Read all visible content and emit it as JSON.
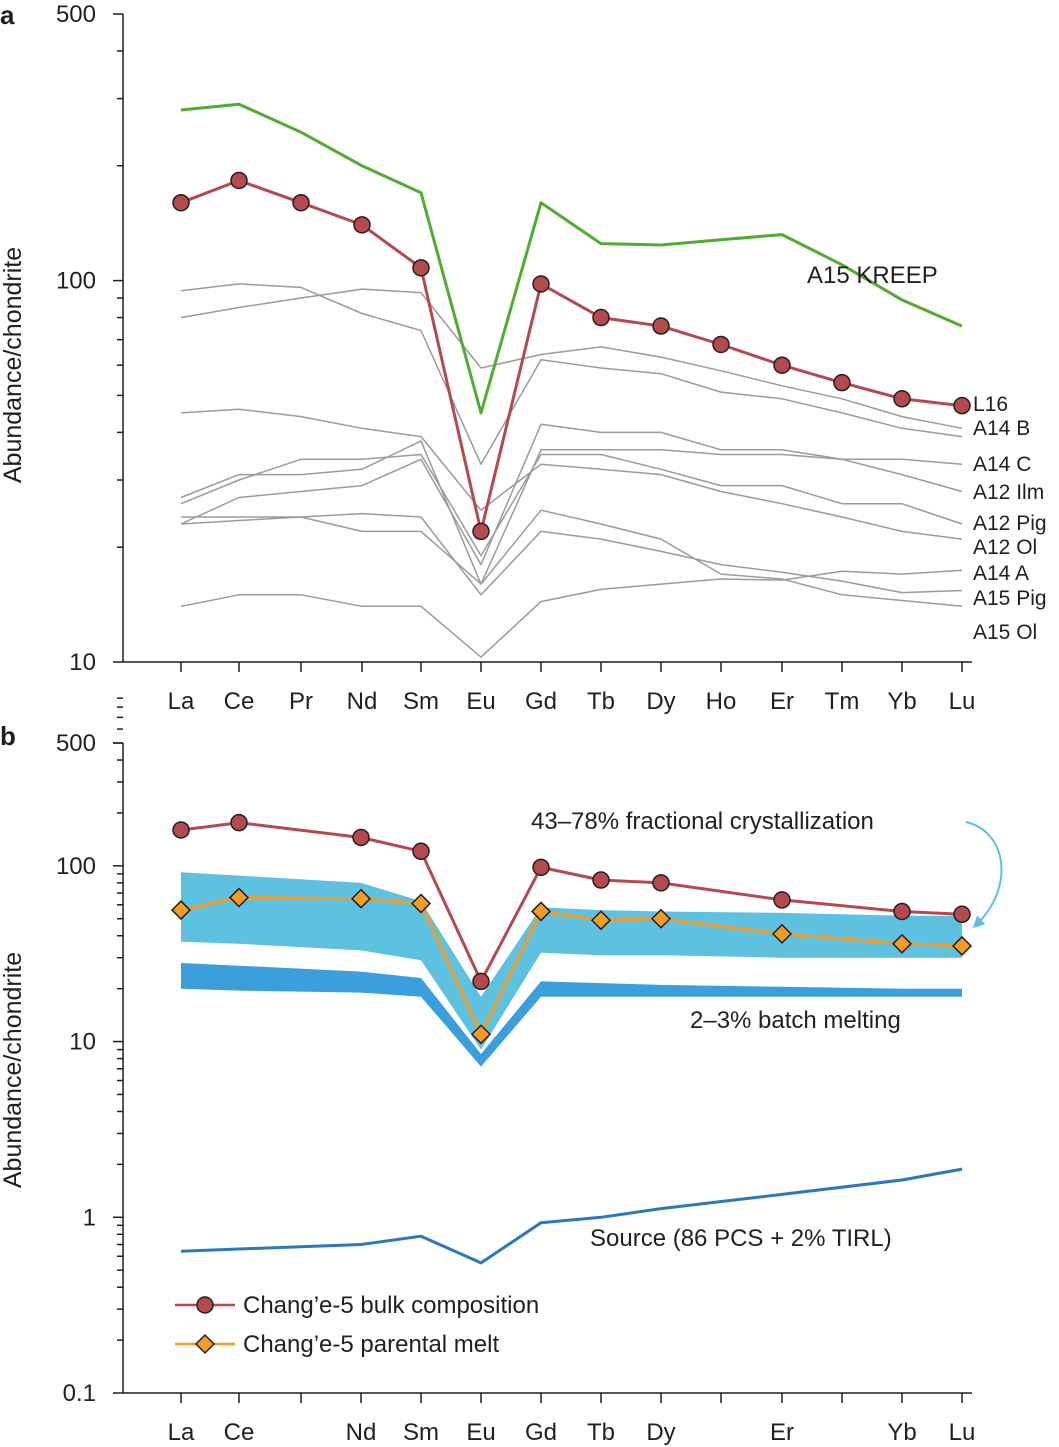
{
  "chart_data": [
    {
      "type": "line",
      "panel": "a",
      "ylabel": "Abundance/chondrite",
      "yscale": "log",
      "ylim": [
        10,
        500
      ],
      "yticks": [
        "10",
        "100",
        "500"
      ],
      "categories": [
        "La",
        "Ce",
        "Pr",
        "Nd",
        "Sm",
        "Eu",
        "Gd",
        "Tb",
        "Dy",
        "Ho",
        "Er",
        "Tm",
        "Yb",
        "Lu"
      ],
      "annotations": {
        "kreep": "A15 KREEP"
      },
      "series": [
        {
          "name": "A15 KREEP",
          "color": "#52ab32",
          "values": [
            280,
            290,
            245,
            200,
            170,
            45,
            160,
            125,
            124,
            128,
            132,
            110,
            89,
            76
          ]
        },
        {
          "name": "Chang'e-5 bulk composition",
          "color": "#b44a4e",
          "marker": "circle",
          "values": [
            160,
            183,
            160,
            140,
            108,
            22,
            98,
            80,
            76,
            68,
            60,
            54,
            49,
            47
          ]
        },
        {
          "name": "L16",
          "label": "L16",
          "color": "#9b9b9b",
          "values": [
            80,
            85,
            90,
            95,
            93,
            59,
            64,
            67,
            63,
            58,
            53,
            49,
            44,
            41
          ]
        },
        {
          "name": "A14 B",
          "label": "A14 B",
          "color": "#9b9b9b",
          "values": [
            94,
            98,
            96,
            82,
            74,
            33,
            62,
            59,
            57,
            51,
            49,
            45,
            41,
            39
          ]
        },
        {
          "name": "A14 C",
          "label": "A14 C",
          "color": "#9b9b9b",
          "values": [
            27,
            31,
            31,
            32,
            38,
            16,
            36,
            36,
            36,
            35,
            35,
            34,
            34,
            33
          ]
        },
        {
          "name": "A12 Ilm",
          "label": "A12 Ilm",
          "color": "#9b9b9b",
          "values": [
            26,
            30,
            34,
            34,
            35,
            19,
            35,
            35,
            32,
            29,
            29,
            26,
            26,
            23
          ]
        },
        {
          "name": "A12 Pig",
          "label": "A12 Pig",
          "color": "#9b9b9b",
          "values": [
            23,
            27,
            28,
            29,
            34,
            18,
            42,
            40,
            40,
            36,
            36,
            34,
            31,
            28
          ]
        },
        {
          "name": "A12 Ol",
          "label": "A12 Ol",
          "color": "#9b9b9b",
          "values": [
            45,
            46,
            44,
            41,
            39,
            25,
            33,
            32,
            31,
            28,
            26,
            24,
            22,
            21
          ]
        },
        {
          "name": "A14 A",
          "label": "A14 A",
          "color": "#9b9b9b",
          "values": [
            24,
            24,
            24,
            22,
            22,
            16,
            25,
            23,
            21,
            17,
            16.5,
            15,
            14.5,
            14
          ]
        },
        {
          "name": "A15 Pig",
          "label": "A15 Pig",
          "color": "#9b9b9b",
          "values": [
            23,
            23.5,
            24,
            24.5,
            24,
            15,
            22,
            21,
            19.5,
            18,
            17.2,
            16.3,
            15.2,
            15.4
          ]
        },
        {
          "name": "A15 Ol",
          "label": "A15 Ol",
          "color": "#9b9b9b",
          "values": [
            14,
            15,
            15,
            14,
            14,
            10.3,
            14.4,
            15.5,
            16,
            16.5,
            16.4,
            17.3,
            17,
            17.4
          ]
        }
      ]
    },
    {
      "type": "line",
      "panel": "b",
      "ylabel": "Abundance/chondrite",
      "yscale": "log",
      "ylim": [
        0.1,
        500
      ],
      "yticks": [
        "0.1",
        "1",
        "10",
        "100",
        "500"
      ],
      "categories": [
        "La",
        "Ce",
        "Nd",
        "Sm",
        "Eu",
        "Gd",
        "Tb",
        "Dy",
        "Er",
        "Yb",
        "Lu"
      ],
      "annotations": {
        "frac": "43–78% fractional crystallization",
        "batch": "2–3% batch melting",
        "source": "Source (86 PCS + 2% TIRL)"
      },
      "bands": [
        {
          "name": "43–78% fractional crystallization",
          "color": "#5fc1e0",
          "upper": [
            92,
            88,
            80,
            63,
            18,
            58,
            56,
            55,
            54,
            52,
            52
          ],
          "lower": [
            37,
            36,
            33,
            29,
            9,
            32,
            31,
            31,
            30,
            30,
            30
          ]
        },
        {
          "name": "2–3% batch melting",
          "color": "#3a9fdb",
          "upper": [
            28,
            27,
            25,
            23,
            8.5,
            22,
            21.5,
            21,
            20.5,
            20,
            20
          ],
          "lower": [
            20,
            19.5,
            19,
            18,
            7.2,
            18,
            18,
            18,
            18,
            18,
            18
          ]
        }
      ],
      "series": [
        {
          "name": "Chang'e-5 bulk composition",
          "color": "#b44a4e",
          "marker": "circle",
          "values": [
            160,
            176,
            145,
            121,
            22,
            98,
            83,
            80,
            64,
            55,
            53
          ]
        },
        {
          "name": "Chang'e-5 parental melt",
          "color": "#f39b25",
          "marker": "diamond",
          "values": [
            56,
            66,
            65,
            61,
            11,
            55,
            49,
            50,
            41,
            36,
            35
          ]
        },
        {
          "name": "Source (86 PCS + 2% TIRL)",
          "color": "#2a78bd",
          "values": [
            0.64,
            0.66,
            0.7,
            0.78,
            0.55,
            0.93,
            1.0,
            1.12,
            1.35,
            1.63,
            1.88
          ]
        }
      ]
    }
  ],
  "legend": {
    "bulk": "Chang’e-5 bulk composition",
    "melt": "Chang’e-5 parental melt"
  }
}
